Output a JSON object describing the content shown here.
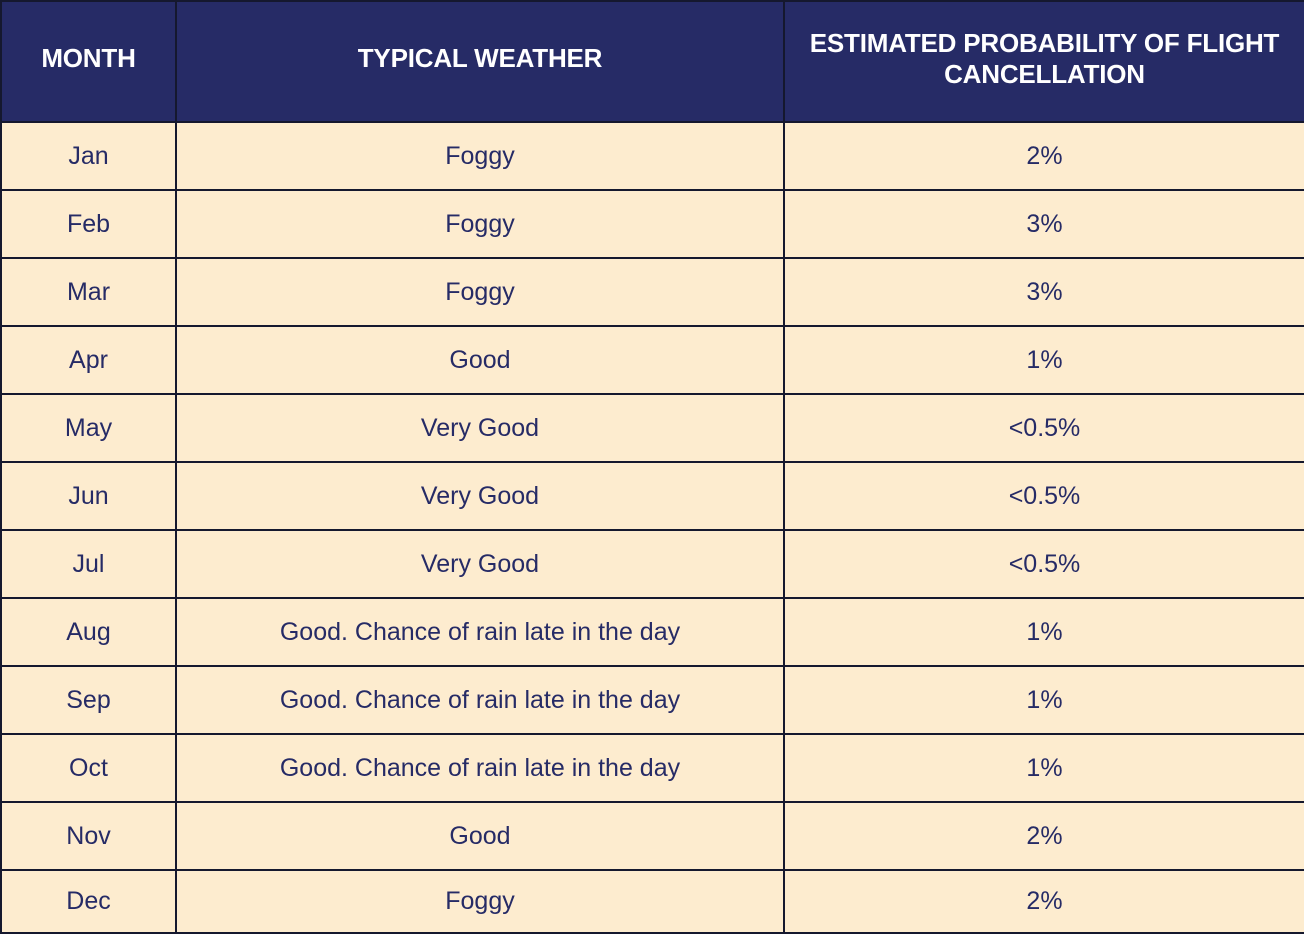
{
  "table": {
    "headers": {
      "month": "MONTH",
      "weather": "TYPICAL WEATHER",
      "probability": "ESTIMATED PROBABILITY OF FLIGHT CANCELLATION"
    },
    "rows": [
      {
        "month": "Jan",
        "weather": "Foggy",
        "probability": "2%"
      },
      {
        "month": "Feb",
        "weather": "Foggy",
        "probability": "3%"
      },
      {
        "month": "Mar",
        "weather": "Foggy",
        "probability": "3%"
      },
      {
        "month": "Apr",
        "weather": "Good",
        "probability": "1%"
      },
      {
        "month": "May",
        "weather": "Very Good",
        "probability": "<0.5%"
      },
      {
        "month": "Jun",
        "weather": "Very Good",
        "probability": "<0.5%"
      },
      {
        "month": "Jul",
        "weather": "Very Good",
        "probability": "<0.5%"
      },
      {
        "month": "Aug",
        "weather": "Good. Chance of rain late in the day",
        "probability": "1%"
      },
      {
        "month": "Sep",
        "weather": "Good. Chance of rain late in the day",
        "probability": "1%"
      },
      {
        "month": "Oct",
        "weather": "Good. Chance of rain late in the day",
        "probability": "1%"
      },
      {
        "month": "Nov",
        "weather": "Good",
        "probability": "2%"
      },
      {
        "month": "Dec",
        "weather": "Foggy",
        "probability": "2%"
      }
    ]
  },
  "colors": {
    "header_background": "#262b66",
    "header_text": "#ffffff",
    "cell_background": "#fdeccf",
    "cell_text": "#262b66",
    "border": "#15182e"
  }
}
